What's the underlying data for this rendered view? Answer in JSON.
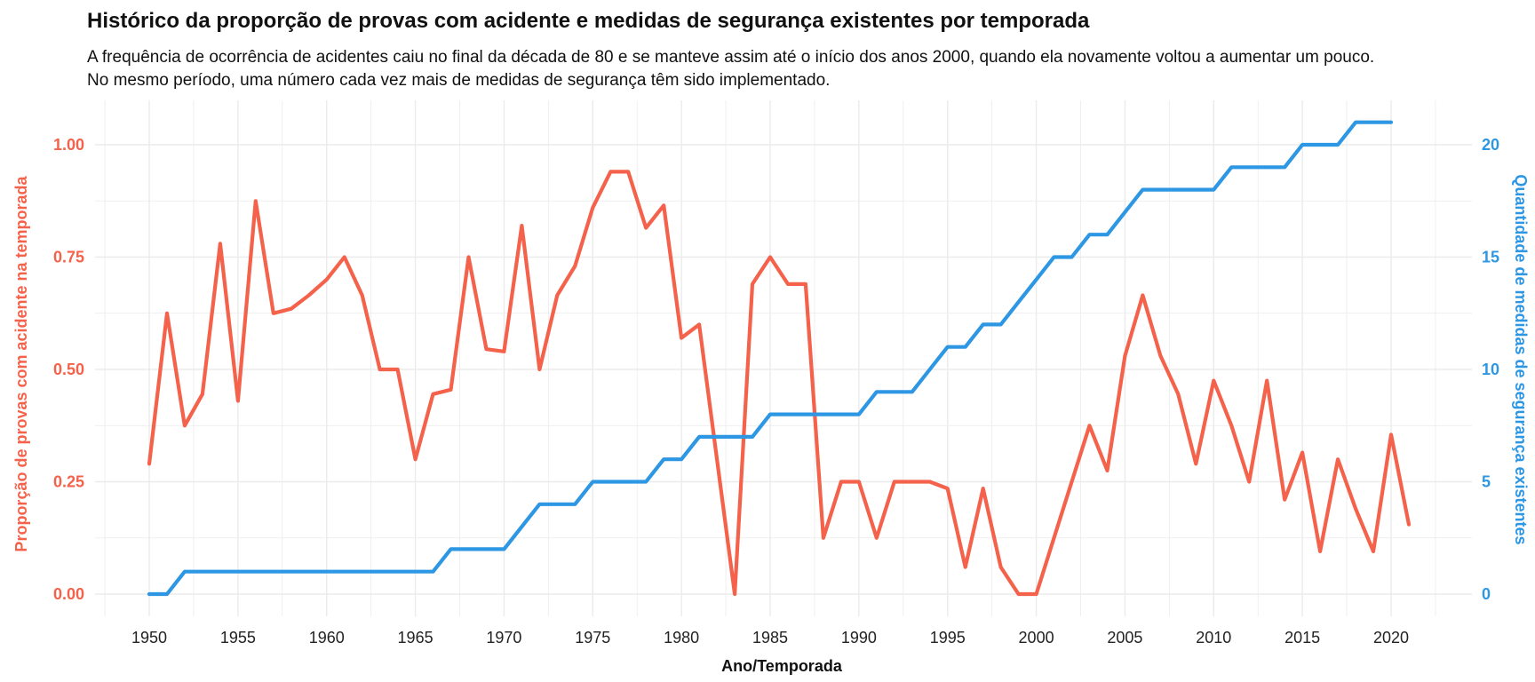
{
  "title": "Histórico da proporção de provas com acidente e medidas de segurança existentes por temporada",
  "subtitle_line1": "A frequência de ocorrência de acidentes caiu no final da década de 80 e se manteve assim até o início dos anos 2000, quando ela novamente voltou a aumentar um pouco.",
  "subtitle_line2": "No mesmo período, uma número cada vez mais de medidas de segurança têm sido implementado.",
  "colors": {
    "accidents": "#F4624B",
    "measures": "#2E97E3",
    "grid": "#EBEBEB"
  },
  "chart_data": {
    "type": "line",
    "title": "Histórico da proporção de provas com acidente e medidas de segurança existentes por temporada",
    "xlabel": "Ano/Temporada",
    "ylabel_left": "Proporção de provas com acidente na temporada",
    "ylabel_right": "Quantidade de medidas de segurança existentes",
    "xlim": [
      1950,
      2021
    ],
    "x_ticks": [
      "1950",
      "1955",
      "1960",
      "1965",
      "1970",
      "1975",
      "1980",
      "1985",
      "1990",
      "1995",
      "2000",
      "2005",
      "2010",
      "2015",
      "2020"
    ],
    "ylim_left": [
      0,
      1
    ],
    "y_ticks_left": [
      "0.00",
      "0.25",
      "0.50",
      "0.75",
      "1.00"
    ],
    "ylim_right": [
      0,
      20
    ],
    "y_ticks_right": [
      "0",
      "5",
      "10",
      "15",
      "20"
    ],
    "grid": true,
    "x": [
      1950,
      1951,
      1952,
      1953,
      1954,
      1955,
      1956,
      1957,
      1958,
      1959,
      1960,
      1961,
      1962,
      1963,
      1964,
      1965,
      1966,
      1967,
      1968,
      1969,
      1970,
      1971,
      1972,
      1973,
      1974,
      1975,
      1976,
      1977,
      1978,
      1979,
      1980,
      1981,
      1982,
      1983,
      1984,
      1985,
      1986,
      1987,
      1988,
      1989,
      1990,
      1991,
      1992,
      1993,
      1994,
      1995,
      1996,
      1997,
      1998,
      1999,
      2000,
      2001,
      2002,
      2003,
      2004,
      2005,
      2006,
      2007,
      2008,
      2009,
      2010,
      2011,
      2012,
      2013,
      2014,
      2015,
      2016,
      2017,
      2018,
      2019,
      2020,
      2021
    ],
    "series": [
      {
        "axis": "left",
        "values": [
          0.29,
          0.625,
          0.375,
          0.445,
          0.78,
          0.43,
          0.875,
          0.625,
          0.635,
          0.665,
          0.7,
          0.75,
          0.665,
          0.5,
          0.5,
          0.3,
          0.445,
          0.455,
          0.75,
          0.545,
          0.54,
          0.82,
          0.5,
          0.665,
          0.73,
          0.86,
          0.94,
          0.94,
          0.815,
          0.865,
          0.57,
          0.6,
          0.3,
          0.0,
          0.69,
          0.75,
          0.69,
          0.69,
          0.125,
          0.25,
          0.25,
          0.125,
          0.25,
          0.25,
          0.25,
          0.235,
          0.06,
          0.235,
          0.06,
          0.0,
          0.0,
          0.125,
          0.25,
          0.375,
          0.275,
          0.53,
          0.665,
          0.53,
          0.445,
          0.29,
          0.475,
          0.375,
          0.25,
          0.475,
          0.21,
          0.315,
          0.095,
          0.3,
          0.19,
          0.095,
          0.355,
          0.155
        ]
      },
      {
        "axis": "right",
        "values": [
          0,
          0,
          1,
          1,
          1,
          1,
          1,
          1,
          1,
          1,
          1,
          1,
          1,
          1,
          1,
          1,
          1,
          2,
          2,
          2,
          2,
          3,
          4,
          4,
          4,
          5,
          5,
          5,
          5,
          6,
          6,
          7,
          7,
          7,
          7,
          8,
          8,
          8,
          8,
          8,
          8,
          9,
          9,
          9,
          10,
          11,
          11,
          12,
          12,
          13,
          14,
          15,
          15,
          16,
          16,
          17,
          18,
          18,
          18,
          18,
          18,
          19,
          19,
          19,
          19,
          20,
          20,
          20,
          21,
          21,
          21,
          null
        ]
      }
    ]
  }
}
